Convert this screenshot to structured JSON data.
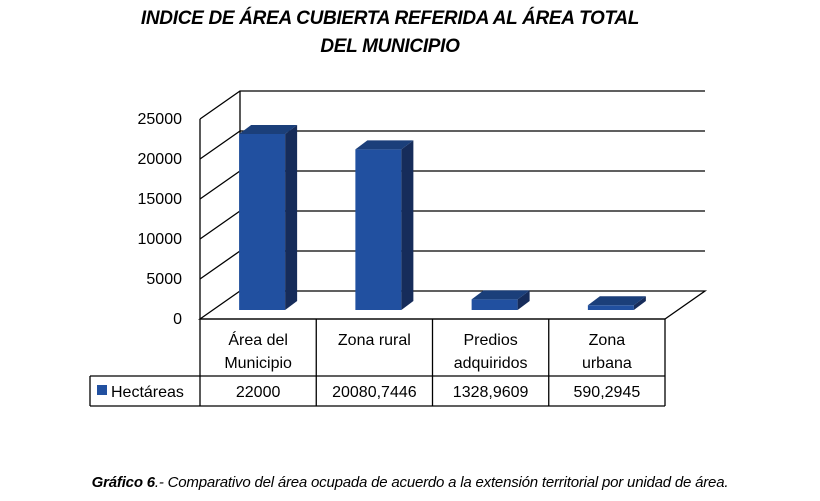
{
  "chart_data": {
    "type": "bar",
    "title_line1": "INDICE DE ÁREA CUBIERTA  REFERIDA AL ÁREA TOTAL",
    "title_line2": "DEL MUNICIPIO",
    "categories": [
      [
        "Área del",
        "Municipio"
      ],
      [
        "Zona rural"
      ],
      [
        "Predios",
        "adquiridos"
      ],
      [
        "Zona",
        "urbana"
      ]
    ],
    "series": [
      {
        "name": "Hectáreas",
        "values": [
          22000,
          20080.7446,
          1328.9609,
          590.2945
        ],
        "color": "#2150a0"
      }
    ],
    "table_values": [
      "22000",
      "20080,7446",
      "1328,9609",
      "590,2945"
    ],
    "yticks": [
      "0",
      "5000",
      "10000",
      "15000",
      "20000",
      "25000"
    ],
    "ylim": [
      0,
      25000
    ],
    "grid": true,
    "data_table": true,
    "legend": "data table"
  },
  "caption": {
    "label": "Gráfico 6",
    "text": ".- Comparativo del área ocupada de acuerdo a la extensión territorial por unidad de área."
  }
}
